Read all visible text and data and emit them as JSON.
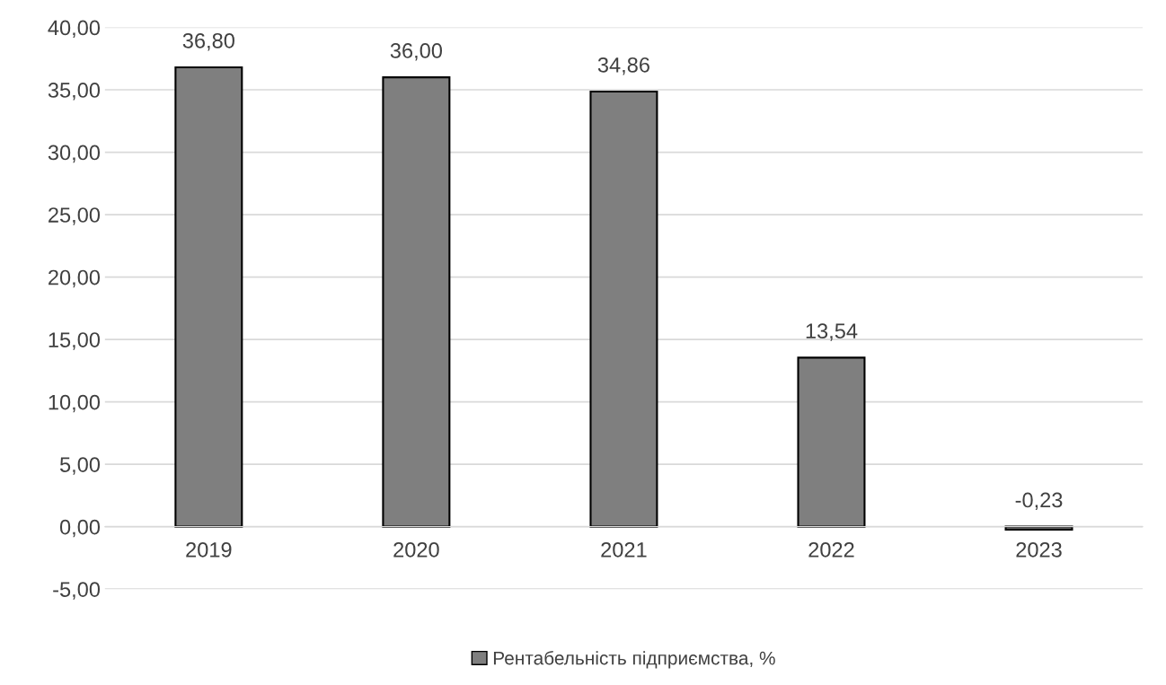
{
  "chart_data": {
    "type": "bar",
    "categories": [
      "2019",
      "2020",
      "2021",
      "2022",
      "2023"
    ],
    "series": [
      {
        "name": "Рентабельність підприємства, %",
        "color": "#7f7f7f",
        "values": [
          36.8,
          36.0,
          34.86,
          13.54,
          -0.23
        ],
        "value_labels": [
          "36,80",
          "36,00",
          "34,86",
          "13,54",
          "-0,23"
        ]
      }
    ],
    "ylim": [
      -5,
      40
    ],
    "yticks": [
      {
        "value": -5,
        "label": "-5,00"
      },
      {
        "value": 0,
        "label": "0,00"
      },
      {
        "value": 5,
        "label": "5,00"
      },
      {
        "value": 10,
        "label": "10,00"
      },
      {
        "value": 15,
        "label": "15,00"
      },
      {
        "value": 20,
        "label": "20,00"
      },
      {
        "value": 25,
        "label": "25,00"
      },
      {
        "value": 30,
        "label": "30,00"
      },
      {
        "value": 35,
        "label": "35,00"
      },
      {
        "value": 40,
        "label": "40,00"
      }
    ],
    "grid": "y",
    "legend": "bottom"
  }
}
